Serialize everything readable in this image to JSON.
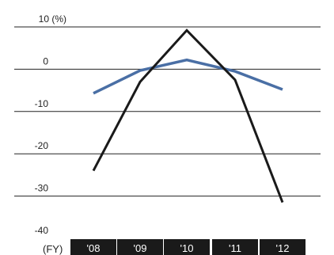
{
  "chart_data": {
    "type": "line",
    "title": "",
    "xlabel": "",
    "ylabel": "",
    "x_axis_prefix": "(FY)",
    "categories": [
      "'08",
      "'09",
      "'10",
      "'11",
      "'12"
    ],
    "y_tick_labels": [
      "10 (%)",
      "0",
      "-10",
      "-20",
      "-30",
      "-40"
    ],
    "y_tick_values": [
      10,
      0,
      -10,
      -20,
      -30,
      -40
    ],
    "ylim": [
      -40,
      10
    ],
    "grid": true,
    "legend": "none",
    "series": [
      {
        "values": [
          -24,
          -3,
          9.2,
          -2.5,
          -31.5
        ],
        "color": "#1a1a1a"
      },
      {
        "values": [
          -5.7,
          -0.3,
          2.2,
          -0.5,
          -4.8
        ],
        "color": "#4a6fa5"
      }
    ]
  }
}
